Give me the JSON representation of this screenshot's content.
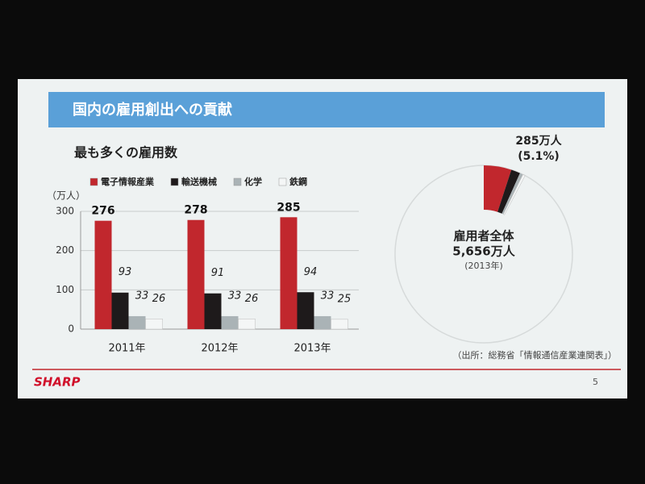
{
  "slide": {
    "title": "国内の雇用創出への貢献",
    "logo": "SHARP",
    "page": "5",
    "source": "（出所：総務省「情報通信産業連関表」）"
  },
  "chart_data": [
    {
      "type": "bar",
      "title": "最も多くの雇用数",
      "y_label": "（万人）",
      "categories": [
        "2011年",
        "2012年",
        "2013年"
      ],
      "series": [
        {
          "name": "電子情報産業",
          "color": "#c1272d",
          "values": [
            276,
            278,
            285
          ]
        },
        {
          "name": "輸送機械",
          "color": "#1e1a1b",
          "values": [
            93,
            91,
            94
          ]
        },
        {
          "name": "化学",
          "color": "#aab3b6",
          "values": [
            33,
            33,
            33
          ]
        },
        {
          "name": "鉄鋼",
          "color": "#f4f6f6",
          "values": [
            26,
            26,
            25
          ]
        }
      ],
      "ylim": [
        0,
        300
      ],
      "yticks": [
        0,
        100,
        200,
        300
      ],
      "grid": true
    },
    {
      "type": "pie",
      "center_title": "雇用者全体",
      "total": {
        "value": 5656,
        "label": "5,656万人"
      },
      "center_note": "(2013年)",
      "values": [
        285,
        94,
        33,
        25
      ],
      "colors": [
        "#c1272d",
        "#1e1a1b",
        "#aab3b6",
        "#f4f6f6"
      ],
      "annotation": {
        "value": 285,
        "label": "285万人"
      },
      "share": {
        "value": 5.1,
        "label": "(5.1%)"
      }
    }
  ]
}
